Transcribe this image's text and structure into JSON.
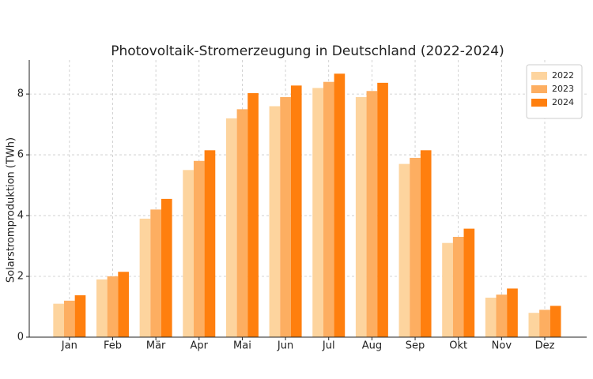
{
  "chart_data": {
    "type": "bar",
    "title": "Photovoltaik-Stromerzeugung in Deutschland (2022-2024)",
    "y_label": "Solarstromproduktion (TWh)",
    "categories": [
      "Jan",
      "Feb",
      "Mär",
      "Apr",
      "Mai",
      "Jun",
      "Jul",
      "Aug",
      "Sep",
      "Okt",
      "Nov",
      "Dez"
    ],
    "series": [
      {
        "name": "2022",
        "color": "#fdd49e",
        "values": [
          1.1,
          1.9,
          3.9,
          5.5,
          7.2,
          7.6,
          8.2,
          7.9,
          5.7,
          3.1,
          1.3,
          0.8
        ]
      },
      {
        "name": "2023",
        "color": "#fdae61",
        "values": [
          1.2,
          2.0,
          4.2,
          5.8,
          7.5,
          7.9,
          8.4,
          8.1,
          5.9,
          3.3,
          1.4,
          0.9
        ]
      },
      {
        "name": "2024",
        "color": "#ff7f0e",
        "values": [
          1.38,
          2.15,
          4.55,
          6.15,
          8.03,
          8.28,
          8.67,
          8.37,
          6.15,
          3.57,
          1.6,
          1.03
        ]
      }
    ],
    "ylim": [
      0,
      9.12
    ],
    "yticks": [
      0,
      2,
      4,
      6,
      8
    ],
    "grid": true,
    "legend": "upper right"
  }
}
